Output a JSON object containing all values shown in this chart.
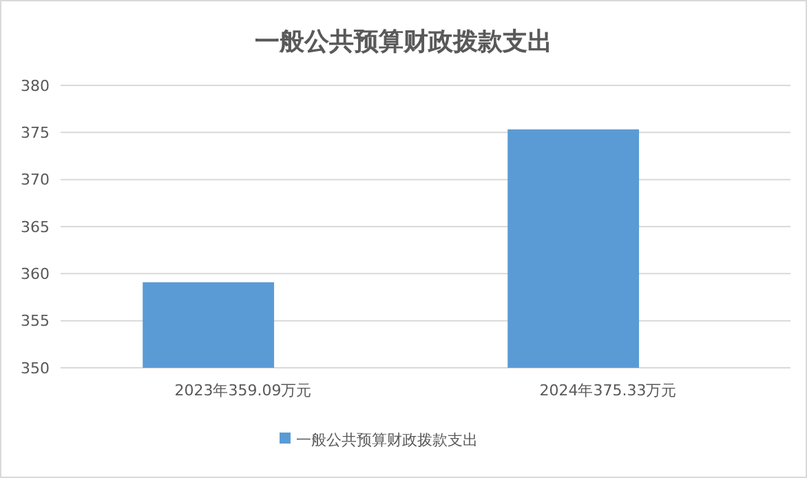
{
  "chart_data": {
    "type": "bar",
    "title": "一般公共预算财政拨款支出",
    "categories": [
      "2023年359.09万元",
      "2024年375.33万元"
    ],
    "series": [
      {
        "name": "一般公共预算财政拨款支出",
        "color": "#5b9bd5",
        "values": [
          359.09,
          375.33
        ]
      }
    ],
    "ylim": [
      350,
      380
    ],
    "yticks": [
      350,
      355,
      360,
      365,
      370,
      375,
      380
    ],
    "grid": "y",
    "legend": "bottom"
  }
}
